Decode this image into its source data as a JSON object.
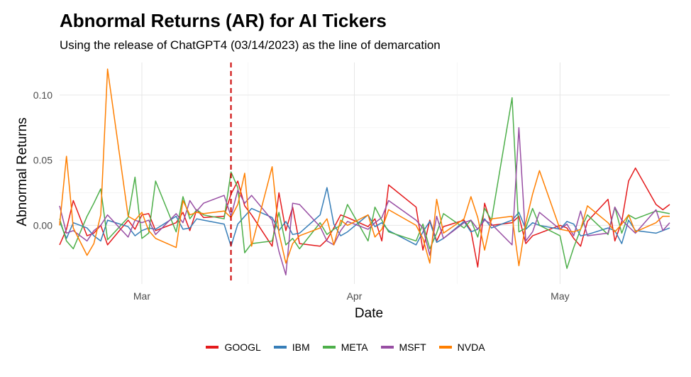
{
  "chart_data": {
    "type": "line",
    "title": "Abnormal Returns (AR) for AI Tickers",
    "subtitle": "Using the release of ChatGPT4 (03/14/2023) as the line of demarcation",
    "xlabel": "Date",
    "ylabel": "Abnormal Returns",
    "x_range": [
      "2023-02-17",
      "2023-05-17"
    ],
    "ylim": [
      -0.045,
      0.125
    ],
    "x_ticks": [
      {
        "date": "2023-03-01",
        "label": "Mar"
      },
      {
        "date": "2023-04-01",
        "label": "Apr"
      },
      {
        "date": "2023-05-01",
        "label": "May"
      }
    ],
    "y_ticks": [
      {
        "value": 0.0,
        "label": "0.00"
      },
      {
        "value": 0.05,
        "label": "0.05"
      },
      {
        "value": 0.1,
        "label": "0.10"
      }
    ],
    "grid": true,
    "legend_position": "bottom",
    "vline": {
      "date": "2023-03-14",
      "style": "dashed",
      "color": "#cc0000"
    },
    "dates": [
      "2023-02-17",
      "2023-02-18",
      "2023-02-19",
      "2023-02-21",
      "2023-02-22",
      "2023-02-23",
      "2023-02-24",
      "2023-02-27",
      "2023-02-28",
      "2023-03-01",
      "2023-03-02",
      "2023-03-03",
      "2023-03-06",
      "2023-03-07",
      "2023-03-08",
      "2023-03-09",
      "2023-03-10",
      "2023-03-13",
      "2023-03-14",
      "2023-03-15",
      "2023-03-16",
      "2023-03-17",
      "2023-03-20",
      "2023-03-21",
      "2023-03-22",
      "2023-03-23",
      "2023-03-24",
      "2023-03-27",
      "2023-03-28",
      "2023-03-29",
      "2023-03-30",
      "2023-03-31",
      "2023-04-03",
      "2023-04-04",
      "2023-04-05",
      "2023-04-06",
      "2023-04-10",
      "2023-04-11",
      "2023-04-12",
      "2023-04-13",
      "2023-04-14",
      "2023-04-17",
      "2023-04-18",
      "2023-04-19",
      "2023-04-20",
      "2023-04-21",
      "2023-04-24",
      "2023-04-25",
      "2023-04-26",
      "2023-04-27",
      "2023-04-28",
      "2023-05-01",
      "2023-05-02",
      "2023-05-03",
      "2023-05-04",
      "2023-05-05",
      "2023-05-08",
      "2023-05-09",
      "2023-05-10",
      "2023-05-11",
      "2023-05-12",
      "2023-05-15",
      "2023-05-16",
      "2023-05-17"
    ],
    "series": [
      {
        "name": "GOOGL",
        "color": "#E41A1C",
        "values": [
          -0.015,
          -0.003,
          0.019,
          -0.008,
          -0.006,
          0.0,
          -0.015,
          0.004,
          -0.003,
          0.008,
          0.009,
          -0.004,
          0.002,
          0.01,
          -0.004,
          0.012,
          0.006,
          0.007,
          0.024,
          0.034,
          0.015,
          0.008,
          -0.016,
          0.025,
          -0.004,
          0.014,
          -0.014,
          -0.016,
          -0.011,
          -0.002,
          0.008,
          0.006,
          -0.001,
          0.005,
          -0.012,
          0.031,
          0.014,
          -0.019,
          0.004,
          -0.012,
          -0.001,
          0.004,
          -0.004,
          -0.032,
          0.017,
          0.0,
          0.002,
          0.007,
          -0.014,
          -0.008,
          -0.006,
          0.0,
          -0.002,
          -0.01,
          -0.016,
          0.003,
          0.02,
          -0.012,
          0.003,
          0.034,
          0.044,
          0.016,
          0.012,
          0.016
        ]
      },
      {
        "name": "IBM",
        "color": "#377EB8",
        "values": [
          0.003,
          -0.01,
          0.002,
          -0.002,
          -0.008,
          -0.012,
          0.004,
          -0.001,
          -0.008,
          -0.004,
          -0.002,
          -0.003,
          0.007,
          -0.003,
          -0.002,
          0.005,
          0.004,
          0.001,
          -0.016,
          0.001,
          0.007,
          0.013,
          0.006,
          -0.004,
          0.003,
          -0.007,
          -0.006,
          0.008,
          0.029,
          0.001,
          -0.008,
          -0.005,
          0.008,
          -0.001,
          0.002,
          -0.004,
          -0.015,
          -0.005,
          0.003,
          -0.013,
          -0.01,
          0.003,
          -0.005,
          -0.003,
          0.005,
          -0.002,
          0.004,
          0.01,
          -0.003,
          0.002,
          0.0,
          -0.003,
          0.003,
          0.001,
          -0.008,
          -0.007,
          -0.002,
          -0.004,
          -0.014,
          0.004,
          -0.004,
          -0.006,
          -0.004,
          -0.002
        ]
      },
      {
        "name": "META",
        "color": "#4DAF4A",
        "values": [
          0.005,
          -0.012,
          -0.018,
          0.007,
          0.017,
          0.028,
          -0.011,
          0.006,
          0.037,
          -0.01,
          -0.006,
          0.034,
          -0.005,
          0.022,
          0.005,
          0.012,
          0.008,
          0.005,
          0.041,
          0.029,
          -0.021,
          -0.014,
          -0.012,
          0.01,
          -0.015,
          -0.01,
          -0.018,
          0.002,
          -0.007,
          -0.003,
          0.0,
          0.016,
          -0.012,
          0.014,
          0.004,
          -0.005,
          -0.012,
          0.001,
          -0.018,
          -0.006,
          0.009,
          -0.002,
          0.004,
          -0.009,
          0.013,
          0.004,
          0.098,
          -0.005,
          -0.002,
          0.013,
          0.0,
          -0.008,
          -0.033,
          -0.017,
          -0.003,
          0.008,
          -0.007,
          0.014,
          -0.006,
          0.008,
          0.005,
          0.011,
          0.01,
          0.009
        ]
      },
      {
        "name": "MSFT",
        "color": "#984EA3",
        "values": [
          0.015,
          -0.006,
          -0.004,
          -0.012,
          -0.004,
          0.0,
          0.008,
          -0.009,
          0.004,
          0.002,
          0.004,
          -0.007,
          0.009,
          0.002,
          0.019,
          0.011,
          0.017,
          0.023,
          0.007,
          0.027,
          0.017,
          0.023,
          0.004,
          -0.02,
          -0.038,
          0.017,
          0.016,
          -0.001,
          -0.012,
          -0.015,
          -0.004,
          0.003,
          -0.003,
          0.002,
          0.006,
          0.019,
          0.004,
          -0.002,
          -0.023,
          0.007,
          -0.01,
          0.002,
          0.004,
          -0.003,
          0.004,
          0.001,
          -0.015,
          0.075,
          -0.012,
          -0.005,
          0.01,
          -0.003,
          0.001,
          -0.008,
          0.011,
          -0.008,
          -0.006,
          0.014,
          0.004,
          -0.001,
          -0.006,
          0.012,
          -0.004,
          0.002
        ]
      },
      {
        "name": "NVDA",
        "color": "#FF7F00",
        "values": [
          0.0,
          0.053,
          -0.002,
          -0.023,
          -0.014,
          0.008,
          0.12,
          0.007,
          0.004,
          0.01,
          -0.004,
          -0.01,
          -0.017,
          0.019,
          0.008,
          0.01,
          0.009,
          0.011,
          0.006,
          0.016,
          0.04,
          -0.016,
          0.045,
          -0.006,
          -0.029,
          -0.014,
          -0.008,
          -0.002,
          0.005,
          -0.015,
          0.004,
          0.0,
          0.008,
          -0.009,
          -0.003,
          0.012,
          0.0,
          -0.01,
          -0.029,
          0.02,
          -0.006,
          0.005,
          0.022,
          0.006,
          -0.019,
          0.005,
          0.007,
          -0.031,
          0.002,
          0.024,
          0.042,
          -0.003,
          -0.004,
          -0.005,
          -0.003,
          0.015,
          0.002,
          -0.005,
          0.001,
          0.008,
          -0.005,
          0.002,
          0.007,
          0.007
        ]
      }
    ]
  }
}
